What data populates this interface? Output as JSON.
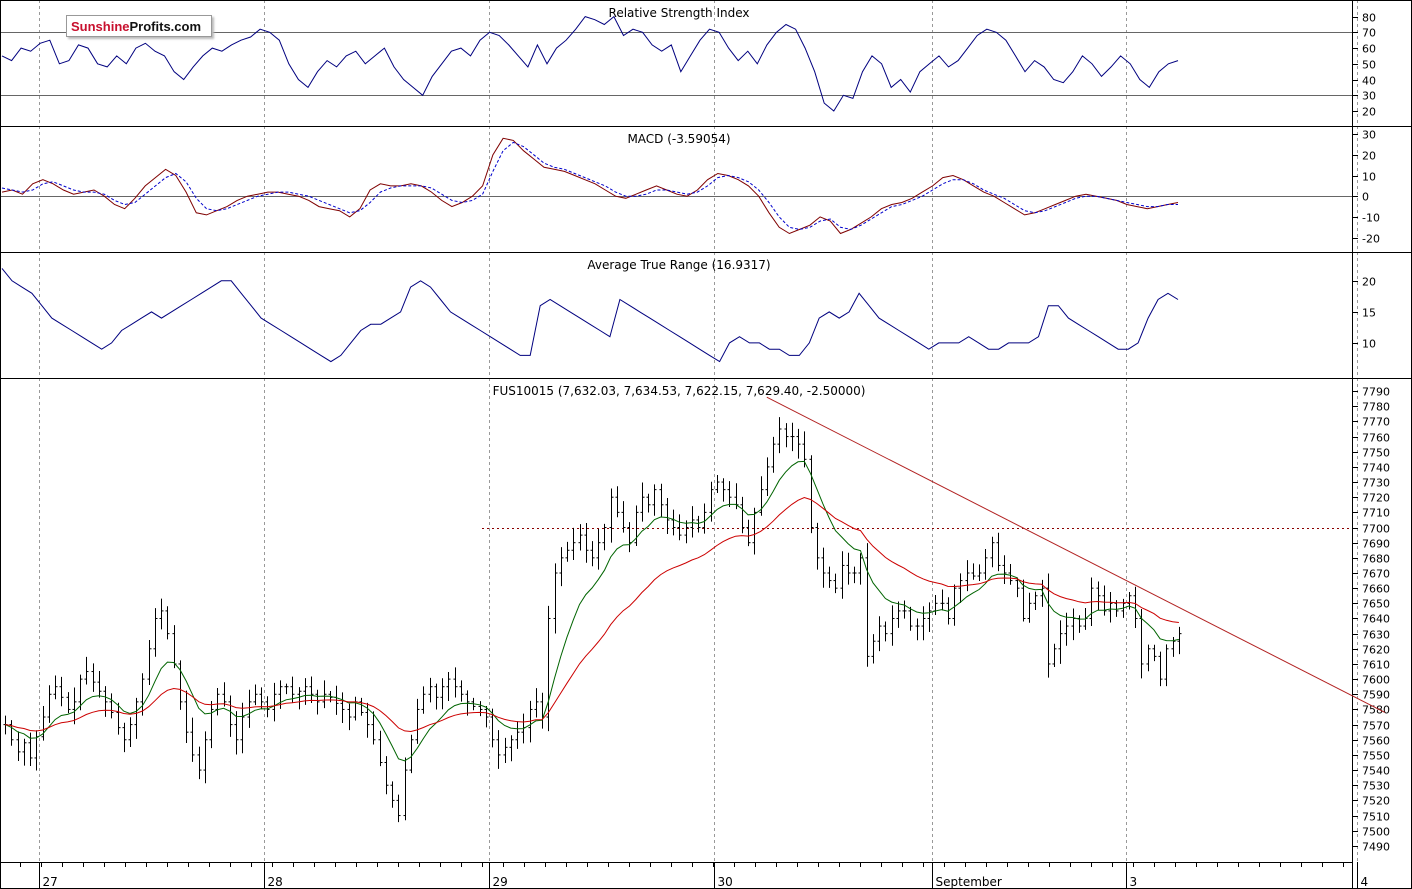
{
  "logo": {
    "part1": "Sunshine",
    "part2": "Profits.com"
  },
  "chart_data": [
    {
      "id": "rsi",
      "type": "line",
      "title": "Relative Strength Index",
      "ylim": [
        13,
        88
      ],
      "yticks": [
        20,
        30,
        40,
        50,
        60,
        70,
        80
      ],
      "reference_lines": [
        30,
        70
      ],
      "series": [
        {
          "color": "#00007f",
          "values": [
            55,
            52,
            60,
            58,
            63,
            65,
            50,
            52,
            62,
            60,
            50,
            48,
            55,
            50,
            60,
            63,
            58,
            55,
            45,
            40,
            48,
            55,
            60,
            58,
            62,
            65,
            67,
            72,
            70,
            65,
            50,
            40,
            35,
            45,
            52,
            48,
            55,
            58,
            50,
            55,
            60,
            48,
            40,
            35,
            30,
            42,
            50,
            58,
            60,
            55,
            65,
            70,
            68,
            62,
            55,
            48,
            62,
            50,
            60,
            65,
            72,
            80,
            78,
            75,
            80,
            68,
            72,
            70,
            62,
            58,
            62,
            45,
            55,
            65,
            72,
            70,
            60,
            52,
            58,
            50,
            62,
            70,
            75,
            72,
            60,
            45,
            25,
            20,
            30,
            28,
            45,
            55,
            50,
            35,
            40,
            32,
            45,
            50,
            55,
            48,
            52,
            60,
            68,
            72,
            70,
            65,
            55,
            45,
            52,
            48,
            40,
            38,
            45,
            55,
            50,
            42,
            48,
            55,
            50,
            40,
            35,
            45,
            50,
            52
          ]
        }
      ]
    },
    {
      "id": "macd",
      "type": "line",
      "title": "MACD (-3.59054)",
      "ylim": [
        -25,
        32
      ],
      "yticks": [
        -20,
        -10,
        0,
        10,
        20,
        30
      ],
      "reference_lines": [
        0
      ],
      "series": [
        {
          "color": "#7f0000",
          "values": [
            2,
            3,
            1,
            6,
            8,
            6,
            3,
            1,
            2,
            3,
            0,
            -4,
            -6,
            -1,
            5,
            9,
            13,
            10,
            2,
            -8,
            -9,
            -7,
            -5,
            -2,
            0,
            1,
            2,
            2,
            1,
            0,
            -2,
            -5,
            -6,
            -7,
            -10,
            -6,
            3,
            6,
            5,
            5,
            6,
            5,
            2,
            -2,
            -5,
            -3,
            0,
            5,
            20,
            28,
            27,
            22,
            18,
            14,
            13,
            12,
            10,
            8,
            6,
            3,
            0,
            -1,
            1,
            3,
            5,
            3,
            1,
            0,
            3,
            8,
            11,
            10,
            8,
            5,
            0,
            -8,
            -15,
            -18,
            -16,
            -14,
            -10,
            -12,
            -18,
            -16,
            -13,
            -10,
            -6,
            -4,
            -3,
            -1,
            2,
            5,
            9,
            10,
            8,
            5,
            2,
            0,
            -3,
            -6,
            -9,
            -8,
            -6,
            -4,
            -2,
            0,
            1,
            0,
            -1,
            -2,
            -4,
            -5,
            -6,
            -5,
            -4,
            -3
          ],
          "dashed": false
        },
        {
          "color": "#0000cc",
          "values": [
            4,
            3,
            2,
            3,
            6,
            7,
            5,
            3,
            2,
            2,
            1,
            -2,
            -4,
            -3,
            1,
            5,
            9,
            11,
            7,
            -1,
            -6,
            -7,
            -6,
            -4,
            -2,
            0,
            1,
            2,
            2,
            1,
            0,
            -2,
            -4,
            -6,
            -8,
            -7,
            -3,
            2,
            4,
            5,
            5,
            5,
            4,
            1,
            -2,
            -3,
            -2,
            1,
            12,
            22,
            26,
            24,
            20,
            16,
            14,
            13,
            11,
            9,
            7,
            5,
            2,
            0,
            0,
            1,
            3,
            3,
            2,
            1,
            2,
            5,
            9,
            10,
            9,
            7,
            3,
            -3,
            -10,
            -15,
            -16,
            -15,
            -12,
            -11,
            -15,
            -16,
            -14,
            -11,
            -8,
            -5,
            -4,
            -2,
            0,
            3,
            6,
            8,
            8,
            6,
            3,
            1,
            -1,
            -4,
            -7,
            -8,
            -7,
            -5,
            -3,
            -1,
            0,
            0,
            -1,
            -2,
            -3,
            -4,
            -5,
            -5,
            -4,
            -4
          ],
          "dashed": true
        }
      ]
    },
    {
      "id": "atr",
      "type": "line",
      "title": "Average True Range (16.9317)",
      "ylim": [
        5,
        24
      ],
      "yticks": [
        10,
        15,
        20
      ],
      "reference_lines": [],
      "series": [
        {
          "color": "#00007f",
          "values": [
            22,
            20,
            19,
            18,
            16,
            14,
            13,
            12,
            11,
            10,
            9,
            10,
            12,
            13,
            14,
            15,
            14,
            15,
            16,
            17,
            18,
            19,
            20,
            20,
            18,
            16,
            14,
            13,
            12,
            11,
            10,
            9,
            8,
            7,
            8,
            10,
            12,
            13,
            13,
            14,
            15,
            19,
            20,
            19,
            17,
            15,
            14,
            13,
            12,
            11,
            10,
            9,
            8,
            8,
            16,
            17,
            16,
            15,
            14,
            13,
            12,
            11,
            17,
            16,
            15,
            14,
            13,
            12,
            11,
            10,
            9,
            8,
            7,
            10,
            11,
            10,
            10,
            9,
            9,
            8,
            8,
            10,
            14,
            15,
            14,
            15,
            18,
            16,
            14,
            13,
            12,
            11,
            10,
            9,
            10,
            10,
            10,
            11,
            10,
            9,
            9,
            10,
            10,
            10,
            11,
            16,
            16,
            14,
            13,
            12,
            11,
            10,
            9,
            9,
            10,
            14,
            17,
            18,
            17
          ]
        }
      ]
    },
    {
      "id": "price",
      "type": "ohlc",
      "title": "FUS10015 (7,632.03, 7,634.53, 7,622.15, 7,629.40, -2.50000)",
      "ylim": [
        7482,
        7796
      ],
      "yticks": [
        7490,
        7500,
        7510,
        7520,
        7530,
        7540,
        7550,
        7560,
        7570,
        7580,
        7590,
        7600,
        7610,
        7620,
        7630,
        7640,
        7650,
        7660,
        7670,
        7680,
        7690,
        7700,
        7710,
        7720,
        7730,
        7740,
        7750,
        7760,
        7770,
        7780,
        7790
      ],
      "x_dates": [
        "27",
        "28",
        "29",
        "30",
        "September",
        "3",
        "4"
      ],
      "x_date_bar_index": [
        6,
        42,
        78,
        114,
        149,
        180,
        217
      ],
      "closes": [
        7570,
        7560,
        7552,
        7558,
        7548,
        7562,
        7575,
        7590,
        7595,
        7588,
        7580,
        7585,
        7600,
        7605,
        7598,
        7592,
        7585,
        7578,
        7568,
        7560,
        7570,
        7585,
        7600,
        7620,
        7640,
        7645,
        7630,
        7610,
        7585,
        7565,
        7550,
        7540,
        7560,
        7580,
        7590,
        7585,
        7570,
        7560,
        7575,
        7585,
        7590,
        7585,
        7580,
        7590,
        7595,
        7595,
        7590,
        7592,
        7595,
        7590,
        7585,
        7590,
        7588,
        7584,
        7580,
        7575,
        7585,
        7578,
        7570,
        7560,
        7545,
        7530,
        7520,
        7510,
        7540,
        7560,
        7580,
        7590,
        7595,
        7588,
        7595,
        7600,
        7595,
        7590,
        7585,
        7582,
        7580,
        7575,
        7560,
        7550,
        7555,
        7560,
        7565,
        7568,
        7580,
        7585,
        7575,
        7640,
        7670,
        7680,
        7685,
        7690,
        7695,
        7685,
        7680,
        7690,
        7700,
        7720,
        7710,
        7700,
        7690,
        7710,
        7720,
        7715,
        7725,
        7715,
        7705,
        7700,
        7695,
        7700,
        7705,
        7700,
        7710,
        7725,
        7730,
        7725,
        7720,
        7715,
        7700,
        7690,
        7710,
        7725,
        7740,
        7755,
        7765,
        7760,
        7760,
        7755,
        7745,
        7700,
        7680,
        7670,
        7665,
        7660,
        7675,
        7670,
        7670,
        7680,
        7615,
        7625,
        7635,
        7630,
        7640,
        7645,
        7645,
        7635,
        7635,
        7640,
        7645,
        7650,
        7650,
        7640,
        7660,
        7665,
        7670,
        7668,
        7670,
        7680,
        7690,
        7675,
        7670,
        7665,
        7660,
        7640,
        7650,
        7655,
        7660,
        7610,
        7620,
        7630,
        7635,
        7640,
        7635,
        7640,
        7660,
        7655,
        7645,
        7650,
        7645,
        7650,
        7655,
        7640,
        7610,
        7620,
        7615,
        7600,
        7620,
        7625,
        7630
      ]
    }
  ]
}
